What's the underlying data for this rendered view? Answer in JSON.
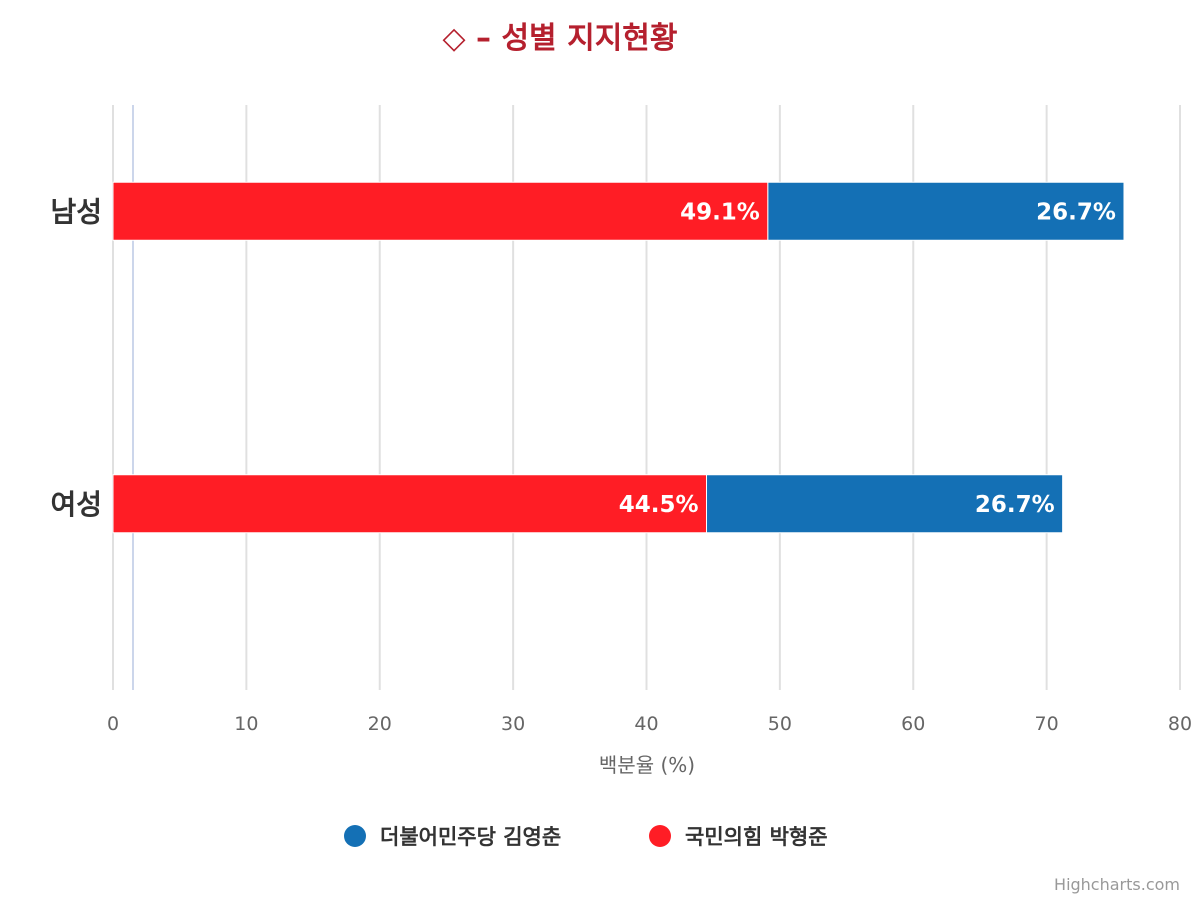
{
  "chart_data": {
    "type": "bar",
    "orientation": "horizontal",
    "stacked": true,
    "title": "◇ – 성별 지지현황",
    "categories": [
      "남성",
      "여성"
    ],
    "series": [
      {
        "name": "더불어민주당 김영춘",
        "color": "#1470b5",
        "values": [
          26.7,
          26.7
        ],
        "labels": [
          "26.7%",
          "26.7%"
        ]
      },
      {
        "name": "국민의힘 박형준",
        "color": "#ff1d25",
        "values": [
          49.1,
          44.5
        ],
        "labels": [
          "49.1%",
          "44.5%"
        ]
      }
    ],
    "xlabel": "백분율 (%)",
    "xlim": [
      0,
      80
    ],
    "xticks": [
      0,
      10,
      20,
      30,
      40,
      50,
      60,
      70,
      80
    ],
    "plot_line_value": 1.5,
    "grid": true,
    "legend_position": "bottom-center"
  },
  "credit": "Highcharts.com"
}
